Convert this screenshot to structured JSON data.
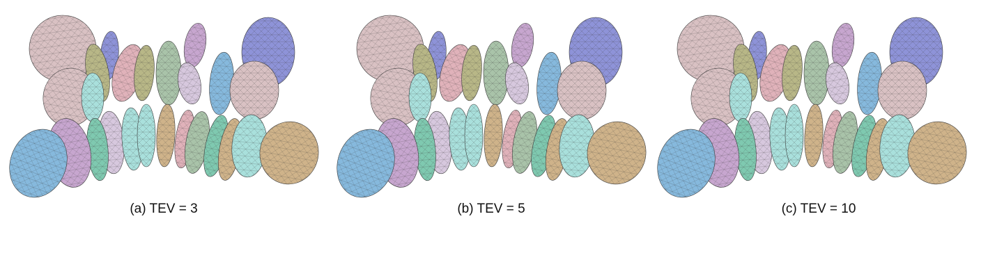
{
  "figure": {
    "panels": [
      {
        "caption": "(a) TEV = 3"
      },
      {
        "caption": "(b) TEV = 5"
      },
      {
        "caption": "(c) TEV = 10"
      }
    ]
  },
  "palette": {
    "pink": "#d9c1c3",
    "blue": "#8e93d8",
    "sky": "#86b9dd",
    "violet": "#c7a6cf",
    "teal": "#7fc9b0",
    "olive": "#b8b787",
    "sage": "#a9c3a9",
    "cyan": "#a9e0dc",
    "tan": "#cfb38a",
    "rose": "#e0b2ba",
    "lilac": "#d7c8de",
    "mesh": "#3a3a3a"
  }
}
